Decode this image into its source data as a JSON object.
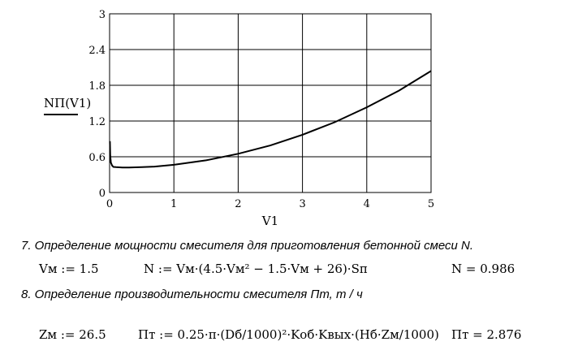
{
  "chart_data": {
    "type": "line",
    "ylabel": "NП(V1)",
    "xlabel": "V1",
    "xlim": [
      0,
      5
    ],
    "ylim": [
      0,
      3
    ],
    "xticks": [
      "0",
      "1",
      "2",
      "3",
      "4",
      "5"
    ],
    "yticks": [
      "0",
      "0.6",
      "1.2",
      "1.8",
      "2.4",
      "3"
    ],
    "grid": true,
    "series": [
      {
        "x": [
          0.005,
          0.01,
          0.02,
          0.04,
          0.06,
          0.1,
          0.2,
          0.3,
          0.5,
          0.7,
          1.0,
          1.5,
          2.0,
          2.5,
          3.0,
          3.5,
          4.0,
          4.5,
          5.0
        ],
        "values": [
          0.86,
          0.62,
          0.5,
          0.45,
          0.43,
          0.425,
          0.42,
          0.42,
          0.425,
          0.435,
          0.465,
          0.54,
          0.65,
          0.79,
          0.97,
          1.18,
          1.43,
          1.71,
          2.04
        ]
      }
    ]
  },
  "section7": {
    "title": "7. Определение мощности смесителя для приготовления бетонной смеси N.",
    "vm_assign": "Vм := 1.5",
    "formula": "N := Vм·(4.5·Vм² − 1.5·Vм + 26)·Sп",
    "result": "N = 0.986"
  },
  "section8": {
    "title": "8. Определение производительности  смесителя Пт, т / ч",
    "zm_assign": "Zм := 26.5",
    "formula": "Пт := 0.25·π·(Dб/1000)²·Kоб·Kвых·(Hб·Zм/1000)",
    "result": "Пт = 2.876"
  }
}
